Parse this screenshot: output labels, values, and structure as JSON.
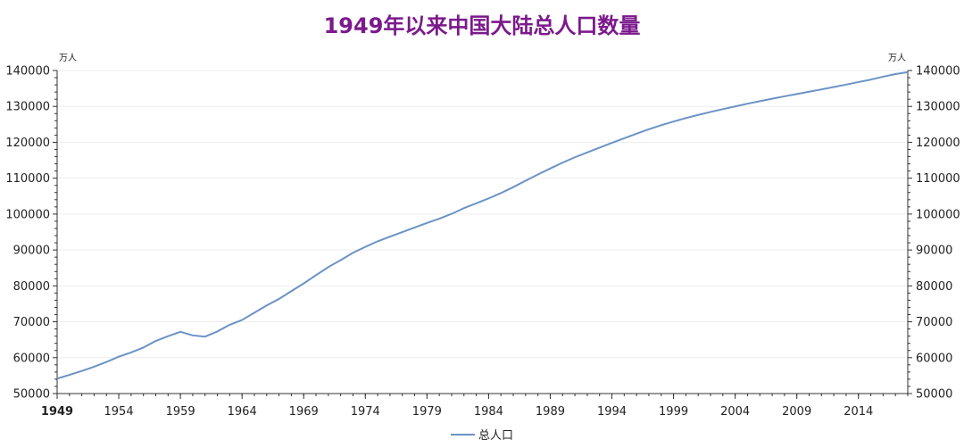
{
  "chart_data": {
    "type": "line",
    "title": "1949年以来中国大陆总人口数量",
    "y_unit_left": "万人",
    "y_unit_right": "万人",
    "ylim": [
      50000,
      140000
    ],
    "y_ticks": [
      50000,
      60000,
      70000,
      80000,
      90000,
      100000,
      110000,
      120000,
      130000,
      140000
    ],
    "xlim": [
      1949,
      2018
    ],
    "x_ticks": [
      1949,
      1954,
      1959,
      1964,
      1969,
      1974,
      1979,
      1984,
      1989,
      1994,
      1999,
      2004,
      2009,
      2014
    ],
    "grid": true,
    "legend_position": "bottom",
    "color": "#6b93c4",
    "series": [
      {
        "name": "总人口",
        "x": [
          1949,
          1950,
          1951,
          1952,
          1953,
          1954,
          1955,
          1956,
          1957,
          1958,
          1959,
          1960,
          1961,
          1962,
          1963,
          1964,
          1965,
          1966,
          1967,
          1968,
          1969,
          1970,
          1971,
          1972,
          1973,
          1974,
          1975,
          1976,
          1977,
          1978,
          1979,
          1980,
          1981,
          1982,
          1983,
          1984,
          1985,
          1986,
          1987,
          1988,
          1989,
          1990,
          1991,
          1992,
          1993,
          1994,
          1995,
          1996,
          1997,
          1998,
          1999,
          2000,
          2001,
          2002,
          2003,
          2004,
          2005,
          2006,
          2007,
          2008,
          2009,
          2010,
          2011,
          2012,
          2013,
          2014,
          2015,
          2016,
          2017,
          2018
        ],
        "values": [
          54167,
          55196,
          56300,
          57482,
          58796,
          60266,
          61465,
          62828,
          64653,
          65994,
          67207,
          66207,
          65859,
          67296,
          69172,
          70499,
          72538,
          74542,
          76368,
          78534,
          80671,
          82992,
          85229,
          87177,
          89211,
          90859,
          92420,
          93717,
          94974,
          96259,
          97542,
          98705,
          100072,
          101654,
          103008,
          104357,
          105851,
          107507,
          109300,
          111026,
          112704,
          114333,
          115823,
          117171,
          118517,
          119850,
          121121,
          122389,
          123626,
          124761,
          125786,
          126743,
          127627,
          128453,
          129227,
          129988,
          130756,
          131448,
          132129,
          132802,
          133450,
          134091,
          134735,
          135404,
          136072,
          136782,
          137462,
          138271,
          139008,
          139538
        ]
      }
    ]
  }
}
